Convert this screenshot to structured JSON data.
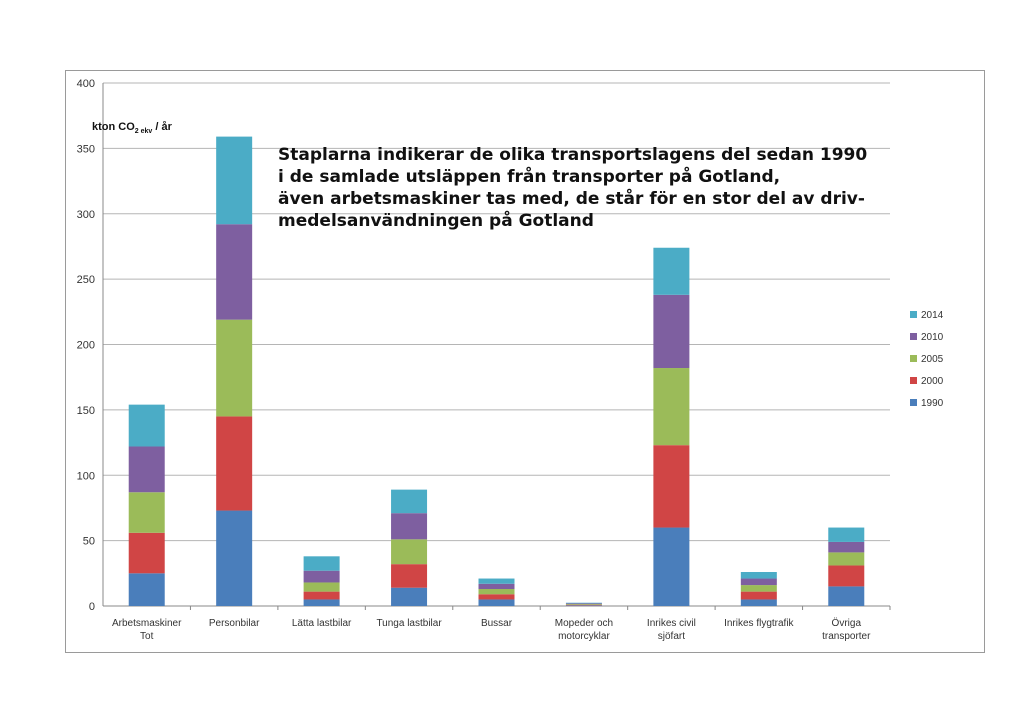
{
  "chart_data": {
    "type": "bar",
    "stacked": true,
    "title_lines": [
      "Staplarna indikerar de olika transportslagens del sedan 1990",
      "i  de samlade utsläppen från transporter på Gotland,",
      "även arbetsmaskiner tas med, de står för en stor del av driv-",
      "medelsanvändningen på Gotland"
    ],
    "ylabel": "kton CO",
    "ylabel_sub": "2 ekv",
    "ylabel_suffix": " / år",
    "ylim": [
      0,
      400
    ],
    "yticks": [
      "0",
      "50",
      "100",
      "150",
      "200",
      "250",
      "300",
      "350",
      "400"
    ],
    "categories": [
      [
        "Arbetsmaskiner",
        "Tot"
      ],
      [
        "Personbilar"
      ],
      [
        "Lätta lastbilar"
      ],
      [
        "Tunga lastbilar"
      ],
      [
        "Bussar"
      ],
      [
        "Mopeder och",
        "motorcyklar"
      ],
      [
        "Inrikes civil",
        "sjöfart"
      ],
      [
        "Inrikes flygtrafik"
      ],
      [
        "Övriga",
        "transporter"
      ]
    ],
    "series": [
      {
        "name": "1990",
        "color": "#4a7ebb",
        "values": [
          25,
          73,
          5,
          14,
          5,
          0.5,
          60,
          5,
          15
        ]
      },
      {
        "name": "2000",
        "color": "#d04545",
        "values": [
          31,
          72,
          6,
          18,
          4,
          0.5,
          63,
          6,
          16
        ]
      },
      {
        "name": "2005",
        "color": "#9bbb59",
        "values": [
          31,
          74,
          7,
          19,
          4,
          0.5,
          59,
          5,
          10
        ]
      },
      {
        "name": "2010",
        "color": "#7e5fa0",
        "values": [
          35,
          73,
          9,
          20,
          4,
          0.5,
          56,
          5,
          8
        ]
      },
      {
        "name": "2014",
        "color": "#4bacc6",
        "values": [
          32,
          67,
          11,
          18,
          4,
          0.5,
          36,
          5,
          11
        ]
      }
    ],
    "legend_order": [
      "2014",
      "2010",
      "2005",
      "2000",
      "1990"
    ],
    "legend_position": "right",
    "grid": true
  }
}
